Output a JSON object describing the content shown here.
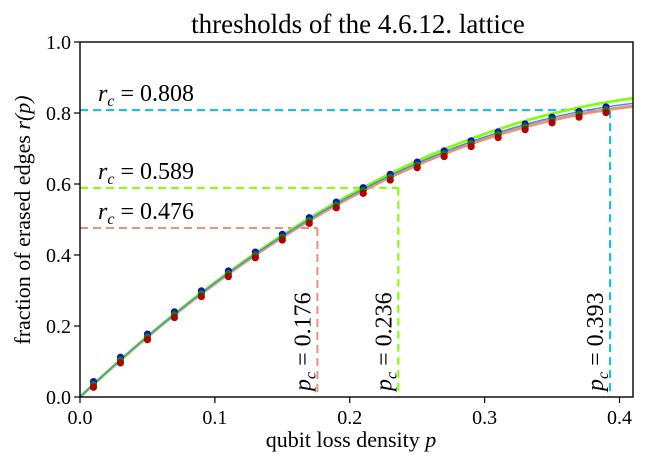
{
  "chart_data": {
    "type": "line",
    "title": "thresholds of the 4.6.12. lattice",
    "xlabel": {
      "text": "qubit loss density ",
      "var": "p"
    },
    "ylabel": {
      "text": "fraction of erased edges ",
      "var": "r(p)"
    },
    "xlim": [
      0.0,
      0.41
    ],
    "ylim": [
      0.0,
      1.0
    ],
    "xticks": [
      0.0,
      0.1,
      0.2,
      0.3,
      0.4
    ],
    "xtick_labels": [
      "0.0",
      "0.1",
      "0.2",
      "0.3",
      "0.4"
    ],
    "yticks": [
      0.0,
      0.2,
      0.4,
      0.6,
      0.8,
      1.0
    ],
    "ytick_labels": [
      "0.0",
      "0.2",
      "0.4",
      "0.6",
      "0.8",
      "1.0"
    ],
    "grid": false,
    "curve_coeffs": [
      {
        "a": 3.58,
        "b": -3.86,
        "color": "#e8927c",
        "width": 3.2
      },
      {
        "a": 3.61,
        "b": -3.8,
        "color": "#7fff00",
        "width": 2.6
      },
      {
        "a": 3.6,
        "b": -3.86,
        "color": "#3a8de0",
        "width": 1.4
      }
    ],
    "markers": {
      "x": [
        0.01,
        0.03,
        0.05,
        0.07,
        0.09,
        0.11,
        0.13,
        0.15,
        0.17,
        0.19,
        0.21,
        0.23,
        0.25,
        0.27,
        0.29,
        0.31,
        0.33,
        0.35,
        0.37,
        0.39
      ],
      "series": [
        {
          "color": "#1010c0",
          "dy": 0.008
        },
        {
          "color": "#108010",
          "dy": 0.0
        },
        {
          "color": "#b00000",
          "dy": -0.008
        }
      ]
    },
    "thresholds": [
      {
        "pc": 0.176,
        "rc": 0.476,
        "color": "#e8927c",
        "pc_label": "0.176",
        "rc_label": "0.476"
      },
      {
        "pc": 0.236,
        "rc": 0.589,
        "color": "#7fff00",
        "pc_label": "0.236",
        "rc_label": "0.589"
      },
      {
        "pc": 0.393,
        "rc": 0.808,
        "color": "#00bfff",
        "pc_label": "0.393",
        "rc_label": "0.808"
      }
    ],
    "annotation_symbols": {
      "r": "r",
      "c": "c",
      "p": "p",
      "eq": " = "
    }
  }
}
